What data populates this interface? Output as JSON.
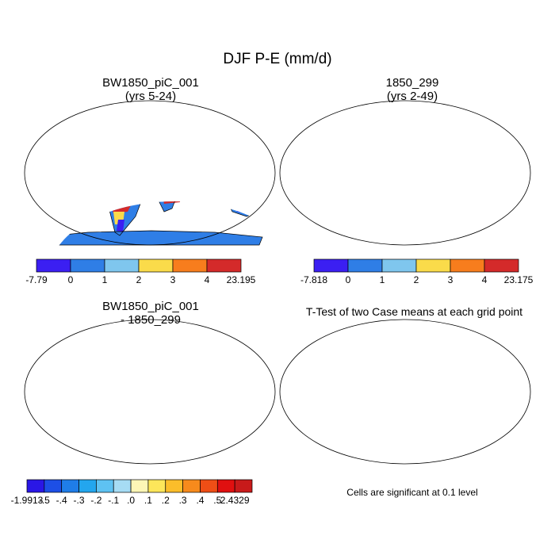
{
  "title": "DJF P-E (mm/d)",
  "panels": [
    {
      "id": "case1",
      "title_line1": "BW1850_piC_001",
      "title_line2": "(yrs 5-24)",
      "colorbar": {
        "labels": [
          "-7.79",
          "0",
          "1",
          "2",
          "3",
          "4",
          "23.195"
        ],
        "colors": [
          "#3b1ff2",
          "#2f7ee6",
          "#7fc6ee",
          "#fadb4a",
          "#f77d1d",
          "#d42a2a"
        ]
      }
    },
    {
      "id": "case2",
      "title_line1": "1850_299",
      "title_line2": "(yrs 2-49)",
      "colorbar": {
        "labels": [
          "-7.818",
          "0",
          "1",
          "2",
          "3",
          "4",
          "23.175"
        ],
        "colors": [
          "#3b1ff2",
          "#2f7ee6",
          "#7fc6ee",
          "#fadb4a",
          "#f77d1d",
          "#d42a2a"
        ]
      }
    },
    {
      "id": "difference",
      "title_line1": "BW1850_piC_001",
      "title_line2": "- 1850_299",
      "colorbar": {
        "labels": [
          "-1.9913",
          "-.5",
          "-.4",
          "-.3",
          "-.2",
          "-.1",
          ".0",
          ".1",
          ".2",
          ".3",
          ".4",
          ".5",
          "2.4329"
        ],
        "colors": [
          "#2a17e6",
          "#1d4fe6",
          "#1f7de8",
          "#23a6ee",
          "#5ec2f2",
          "#a6dcf4",
          "#fdf6b6",
          "#fde65a",
          "#fbbd2a",
          "#f78a1c",
          "#ef4e16",
          "#e01010",
          "#c81a1a"
        ]
      }
    },
    {
      "id": "ttest",
      "title_line1": "T-Test of two Case means at each grid point",
      "note": "Cells are significant at 0.1 level",
      "significant_color": "#e00000"
    }
  ]
}
